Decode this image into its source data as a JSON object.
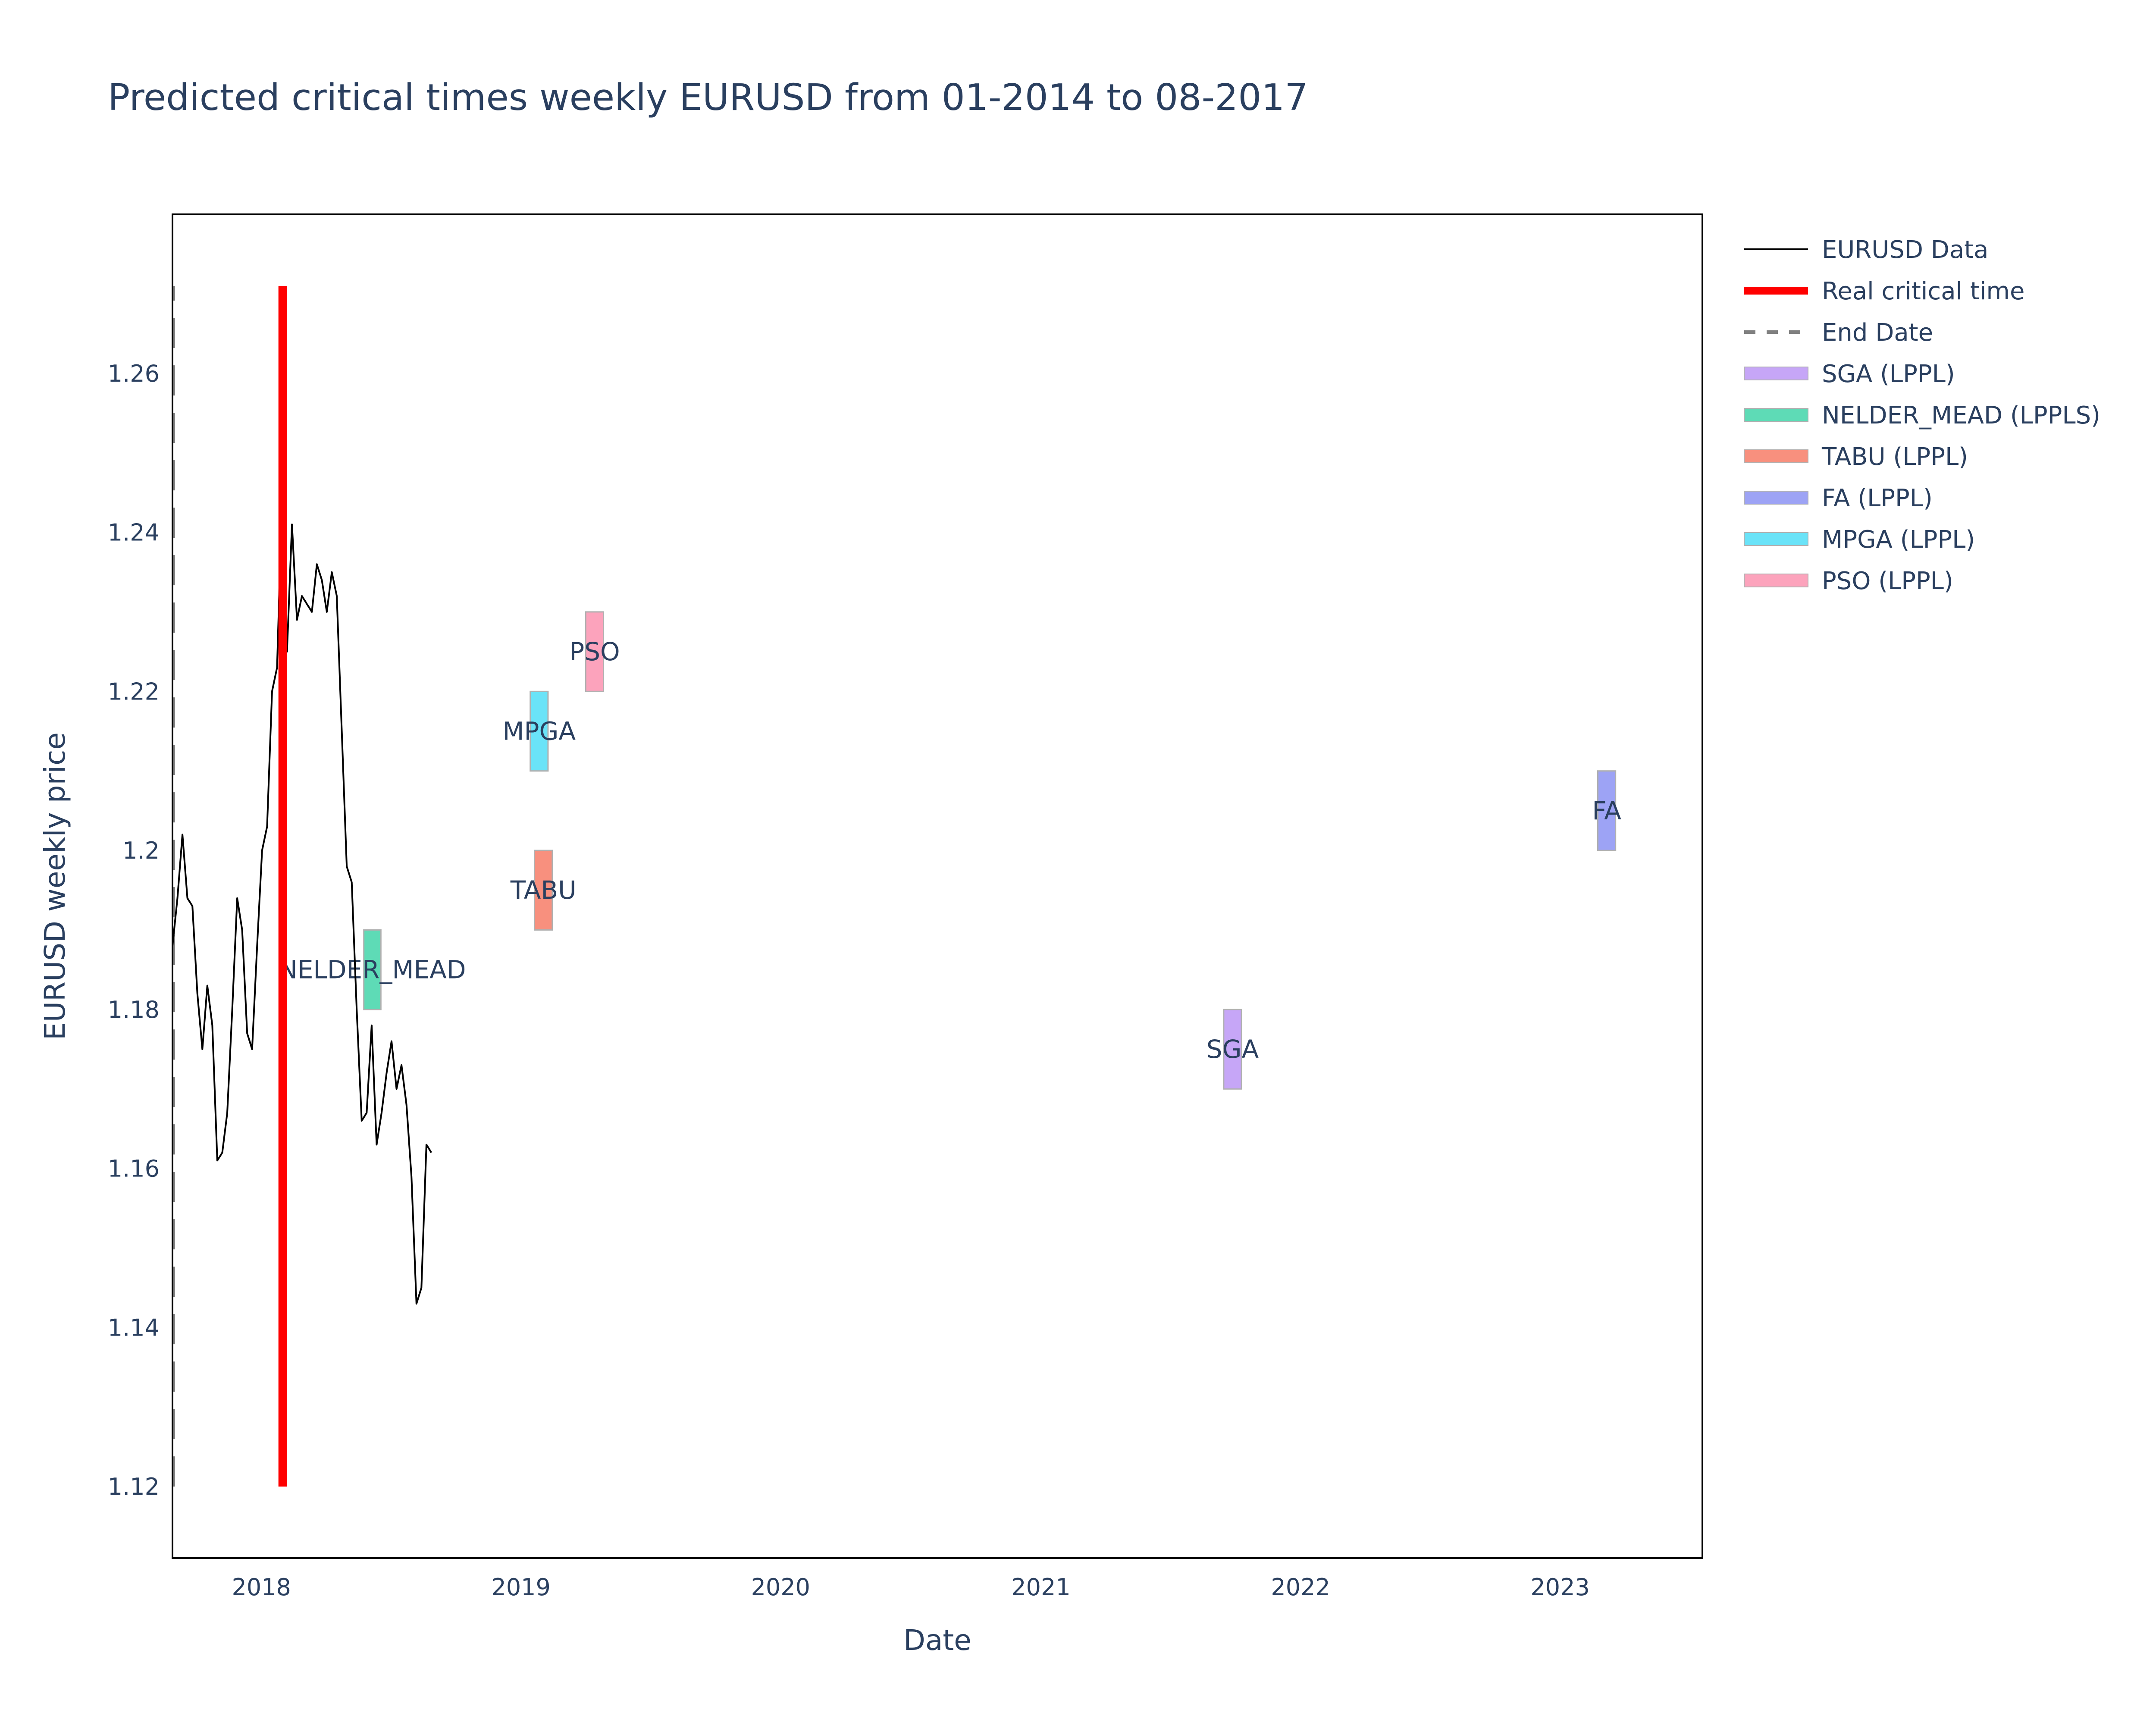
{
  "chart_data": {
    "type": "line",
    "title": "Predicted critical times weekly EURUSD from 01-2014 to 08-2017",
    "xlabel": "Date",
    "ylabel": "EURUSD weekly price",
    "x_domain": [
      "2017-08-29",
      "2023-07-20"
    ],
    "ylim": [
      1.111,
      1.28
    ],
    "x_ticks": [
      {
        "date": "2018-01-01",
        "label": "2018"
      },
      {
        "date": "2019-01-01",
        "label": "2019"
      },
      {
        "date": "2020-01-01",
        "label": "2020"
      },
      {
        "date": "2021-01-01",
        "label": "2021"
      },
      {
        "date": "2022-01-01",
        "label": "2022"
      },
      {
        "date": "2023-01-01",
        "label": "2023"
      }
    ],
    "y_ticks": [
      {
        "value": 1.12,
        "label": "1.12"
      },
      {
        "value": 1.14,
        "label": "1.14"
      },
      {
        "value": 1.16,
        "label": "1.16"
      },
      {
        "value": 1.18,
        "label": "1.18"
      },
      {
        "value": 1.2,
        "label": "1.2"
      },
      {
        "value": 1.22,
        "label": "1.22"
      },
      {
        "value": 1.24,
        "label": "1.24"
      },
      {
        "value": 1.26,
        "label": "1.26"
      }
    ],
    "grid": false,
    "legend_position": "top-right outside",
    "series": [
      {
        "name": "EURUSD Data",
        "color": "#000000",
        "points": [
          [
            "2017-08-29",
            1.188
          ],
          [
            "2017-09-05",
            1.194
          ],
          [
            "2017-09-12",
            1.202
          ],
          [
            "2017-09-19",
            1.194
          ],
          [
            "2017-09-26",
            1.193
          ],
          [
            "2017-10-03",
            1.182
          ],
          [
            "2017-10-10",
            1.175
          ],
          [
            "2017-10-17",
            1.183
          ],
          [
            "2017-10-24",
            1.178
          ],
          [
            "2017-10-31",
            1.161
          ],
          [
            "2017-11-07",
            1.162
          ],
          [
            "2017-11-14",
            1.167
          ],
          [
            "2017-11-21",
            1.18
          ],
          [
            "2017-11-28",
            1.194
          ],
          [
            "2017-12-05",
            1.19
          ],
          [
            "2017-12-12",
            1.177
          ],
          [
            "2017-12-19",
            1.175
          ],
          [
            "2017-12-26",
            1.188
          ],
          [
            "2018-01-02",
            1.2
          ],
          [
            "2018-01-09",
            1.203
          ],
          [
            "2018-01-16",
            1.22
          ],
          [
            "2018-01-23",
            1.223
          ],
          [
            "2018-01-30",
            1.244
          ],
          [
            "2018-02-06",
            1.225
          ],
          [
            "2018-02-13",
            1.241
          ],
          [
            "2018-02-20",
            1.229
          ],
          [
            "2018-02-27",
            1.232
          ],
          [
            "2018-03-06",
            1.231
          ],
          [
            "2018-03-13",
            1.23
          ],
          [
            "2018-03-20",
            1.236
          ],
          [
            "2018-03-27",
            1.234
          ],
          [
            "2018-04-03",
            1.23
          ],
          [
            "2018-04-10",
            1.235
          ],
          [
            "2018-04-17",
            1.232
          ],
          [
            "2018-04-24",
            1.215
          ],
          [
            "2018-05-01",
            1.198
          ],
          [
            "2018-05-08",
            1.196
          ],
          [
            "2018-05-15",
            1.18
          ],
          [
            "2018-05-22",
            1.166
          ],
          [
            "2018-05-29",
            1.167
          ],
          [
            "2018-06-05",
            1.178
          ],
          [
            "2018-06-12",
            1.163
          ],
          [
            "2018-06-19",
            1.167
          ],
          [
            "2018-06-26",
            1.172
          ],
          [
            "2018-07-03",
            1.176
          ],
          [
            "2018-07-10",
            1.17
          ],
          [
            "2018-07-17",
            1.173
          ],
          [
            "2018-07-24",
            1.168
          ],
          [
            "2018-07-31",
            1.159
          ],
          [
            "2018-08-07",
            1.143
          ],
          [
            "2018-08-14",
            1.145
          ],
          [
            "2018-08-21",
            1.163
          ],
          [
            "2018-08-28",
            1.162
          ]
        ]
      },
      {
        "name": "Real critical time",
        "color": "#ff0000",
        "date": "2018-01-31",
        "y_range": [
          1.12,
          1.271
        ]
      },
      {
        "name": "End Date",
        "color": "#808080",
        "date": "2017-08-29",
        "y_range": [
          1.12,
          1.271
        ]
      }
    ],
    "predictions": [
      {
        "name": "SGA (LPPL)",
        "label": "SGA",
        "start": "2021-09-15",
        "end": "2021-10-10",
        "ymin": 1.17,
        "ymax": 1.18,
        "color": "#c6a6f7"
      },
      {
        "name": "NELDER_MEAD (LPPLS)",
        "label": "NELDER_MEAD",
        "start": "2018-05-25",
        "end": "2018-06-18",
        "ymin": 1.18,
        "ymax": 1.19,
        "color": "#5edbb6"
      },
      {
        "name": "TABU (LPPL)",
        "label": "TABU",
        "start": "2019-01-20",
        "end": "2019-02-14",
        "ymin": 1.19,
        "ymax": 1.2,
        "color": "#f8907e"
      },
      {
        "name": "FA (LPPL)",
        "label": "FA",
        "start": "2023-02-23",
        "end": "2023-03-20",
        "ymin": 1.2,
        "ymax": 1.21,
        "color": "#9da3f5"
      },
      {
        "name": "MPGA (LPPL)",
        "label": "MPGA",
        "start": "2019-01-14",
        "end": "2019-02-08",
        "ymin": 1.21,
        "ymax": 1.22,
        "color": "#6ae3f8"
      },
      {
        "name": "PSO (LPPL)",
        "label": "PSO",
        "start": "2019-04-02",
        "end": "2019-04-27",
        "ymin": 1.22,
        "ymax": 1.23,
        "color": "#fca3bc"
      }
    ]
  }
}
